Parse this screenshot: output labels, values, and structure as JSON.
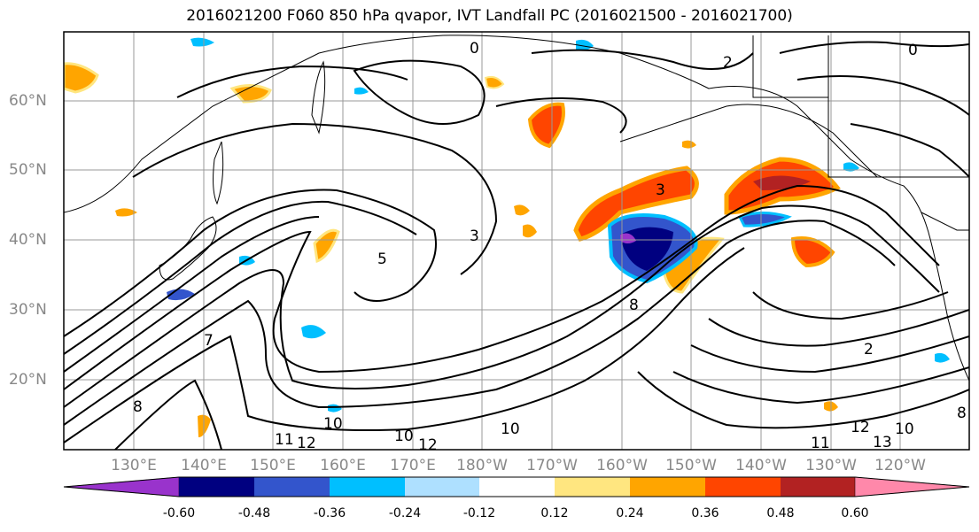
{
  "title": "2016021200 F060 850 hPa qvapor, IVT Landfall PC (2016021500 - 2016021700)",
  "lat_labels": [
    "60°N",
    "50°N",
    "40°N",
    "30°N",
    "20°N"
  ],
  "lon_labels": [
    "130°E",
    "140°E",
    "150°E",
    "160°E",
    "170°E",
    "180°W",
    "170°W",
    "160°W",
    "150°W",
    "140°W",
    "130°W",
    "120°W"
  ],
  "colorbar": {
    "ticks": [
      "-0.60",
      "-0.48",
      "-0.36",
      "-0.24",
      "-0.12",
      "0.12",
      "0.24",
      "0.36",
      "0.48",
      "0.60"
    ],
    "colors": [
      "#9933cc",
      "#000080",
      "#3355cc",
      "#00bfff",
      "#aee0ff",
      "#ffffff",
      "#ffe680",
      "#ffa500",
      "#ff4500",
      "#b22222",
      "#ff88aa"
    ]
  },
  "contour_labels": [
    "0",
    "2",
    "3",
    "5",
    "7",
    "8",
    "10",
    "11",
    "12",
    "13"
  ]
}
